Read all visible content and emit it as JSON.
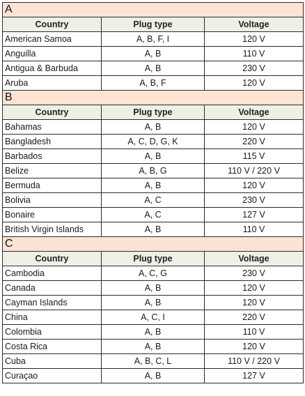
{
  "headers": {
    "country": "Country",
    "plug_type": "Plug type",
    "voltage": "Voltage"
  },
  "sections": [
    {
      "letter": "A",
      "rows": [
        {
          "country": "American Samoa",
          "plug": "A, B, F, I",
          "voltage": "120 V"
        },
        {
          "country": "Anguilla",
          "plug": "A, B",
          "voltage": "110 V"
        },
        {
          "country": "Antigua & Barbuda",
          "plug": "A, B",
          "voltage": "230 V"
        },
        {
          "country": "Aruba",
          "plug": "A, B, F",
          "voltage": "120 V"
        }
      ]
    },
    {
      "letter": "B",
      "rows": [
        {
          "country": "Bahamas",
          "plug": "A, B",
          "voltage": "120 V"
        },
        {
          "country": "Bangladesh",
          "plug": "A, C, D, G, K",
          "voltage": "220 V"
        },
        {
          "country": "Barbados",
          "plug": "A, B",
          "voltage": "115 V"
        },
        {
          "country": "Belize",
          "plug": "A, B, G",
          "voltage": "110 V / 220 V"
        },
        {
          "country": "Bermuda",
          "plug": "A, B",
          "voltage": "120 V"
        },
        {
          "country": "Bolivia",
          "plug": "A, C",
          "voltage": "230 V"
        },
        {
          "country": "Bonaire",
          "plug": "A, C",
          "voltage": "127 V"
        },
        {
          "country": "British Virgin Islands",
          "plug": "A, B",
          "voltage": "110 V"
        }
      ]
    },
    {
      "letter": "C",
      "rows": [
        {
          "country": "Cambodia",
          "plug": "A, C, G",
          "voltage": "230 V"
        },
        {
          "country": "Canada",
          "plug": "A, B",
          "voltage": "120 V"
        },
        {
          "country": "Cayman Islands",
          "plug": "A, B",
          "voltage": "120 V"
        },
        {
          "country": "China",
          "plug": "A, C, I",
          "voltage": "220 V"
        },
        {
          "country": "Colombia",
          "plug": "A, B",
          "voltage": "110 V"
        },
        {
          "country": "Costa Rica",
          "plug": "A, B",
          "voltage": "120 V"
        },
        {
          "country": "Cuba",
          "plug": "A, B, C, L",
          "voltage": "110 V / 220 V"
        },
        {
          "country": "Curaçao",
          "plug": "A, B",
          "voltage": "127 V"
        }
      ]
    }
  ]
}
